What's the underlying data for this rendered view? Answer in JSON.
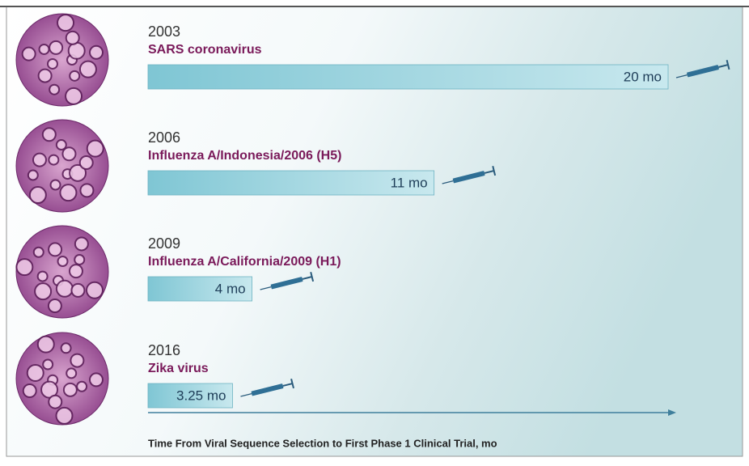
{
  "chart_data": {
    "type": "bar",
    "orientation": "horizontal",
    "years": [
      "2003",
      "2006",
      "2009",
      "2016"
    ],
    "categories": [
      "SARS coronavirus",
      "Influenza A/Indonesia/2006 (H5)",
      "Influenza A/California/2009 (H1)",
      "Zika virus"
    ],
    "values": [
      20,
      11,
      4,
      3.25
    ],
    "value_labels": [
      "20 mo",
      "11 mo",
      "4 mo",
      "3.25 mo"
    ],
    "xlabel": "Time From Viral Sequence Selection to First Phase 1 Clinical Trial, mo",
    "xlim": [
      0,
      20
    ],
    "color": "#8fcfdb"
  }
}
